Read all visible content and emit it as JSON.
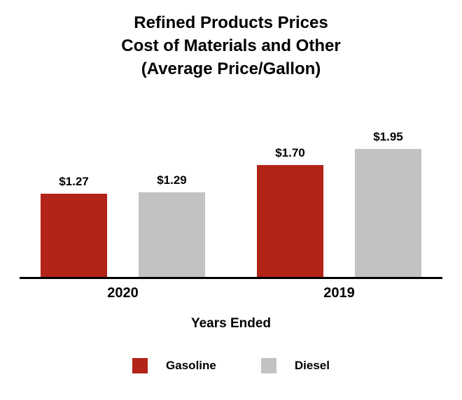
{
  "chart_data": {
    "type": "bar",
    "title_lines": [
      "Refined Products Prices",
      "Cost of Materials and Other",
      "(Average Price/Gallon)"
    ],
    "categories": [
      "2020",
      "2019"
    ],
    "series": [
      {
        "name": "Gasoline",
        "color": "#b22318",
        "values": [
          1.27,
          1.7
        ],
        "labels": [
          "$1.27",
          "$1.70"
        ]
      },
      {
        "name": "Diesel",
        "color": "#c2c2c2",
        "values": [
          1.29,
          1.95
        ],
        "labels": [
          "$1.29",
          "$1.95"
        ]
      }
    ],
    "xlabel": "Years Ended",
    "ylabel": "",
    "ylim": [
      0,
      2.2
    ],
    "grid": false,
    "legend_position": "bottom"
  }
}
